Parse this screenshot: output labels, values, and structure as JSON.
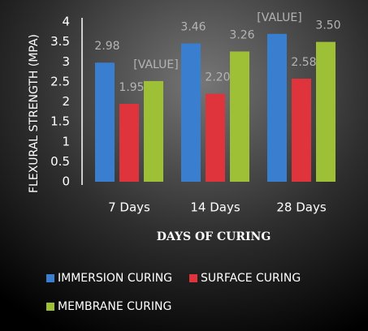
{
  "chart_data": {
    "type": "bar",
    "y_label": "FLEXURAL STRENGTH (MPA)",
    "x_label": "DAYS OF CURING",
    "categories": [
      "7 Days",
      "14 Days",
      "28 Days"
    ],
    "series": [
      {
        "name": "IMMERSION CURING",
        "color": "#3a7fcf",
        "values": [
          2.98,
          3.46,
          3.7
        ],
        "value_labels": [
          "2.98",
          "3.46",
          "[VALUE]"
        ]
      },
      {
        "name": "SURFACE CURING",
        "color": "#e0343c",
        "values": [
          1.95,
          2.2,
          2.58
        ],
        "value_labels": [
          "1.95",
          "2.20",
          "2.58"
        ]
      },
      {
        "name": "MEMBRANE CURING",
        "color": "#9ec036",
        "values": [
          2.52,
          3.26,
          3.5
        ],
        "value_labels": [
          "[VALUE]",
          "3.26",
          "3.50"
        ]
      }
    ],
    "ylim": [
      0,
      4
    ],
    "yticks": [
      0,
      0.5,
      1,
      1.5,
      2,
      2.5,
      3,
      3.5,
      4
    ],
    "legend": "bottom"
  }
}
